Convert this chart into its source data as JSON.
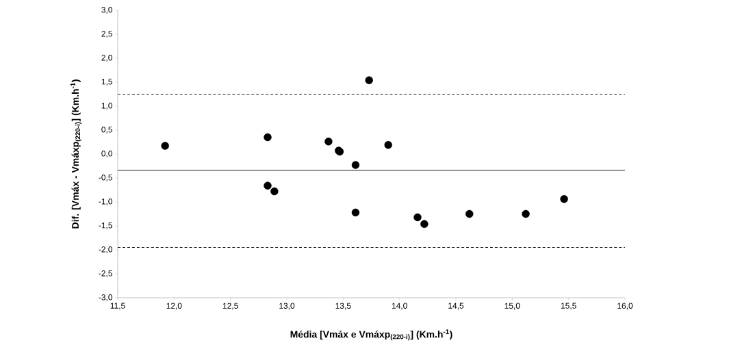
{
  "chart_data": {
    "type": "scatter",
    "xlabel": "Média [Vmáx e Vmáxp$_{(220-i)}$] (Km.h$^{-1}$)",
    "ylabel": "Dif. [Vmáx - Vmáxp$_{(220-i)}$] (Km.h$^{-1}$)",
    "x": [
      11.92,
      12.83,
      12.83,
      12.89,
      13.37,
      13.46,
      13.47,
      13.61,
      13.61,
      13.73,
      13.9,
      14.16,
      14.22,
      14.62,
      15.12,
      15.46
    ],
    "values": [
      0.17,
      0.35,
      -0.66,
      -0.78,
      0.26,
      0.07,
      0.05,
      -0.23,
      -1.22,
      1.54,
      0.19,
      -1.32,
      -1.46,
      -1.25,
      -1.25,
      -0.94
    ],
    "color": "#000000",
    "marker": "circle",
    "xlim": [
      11.5,
      16.0
    ],
    "xticks": [
      {
        "value": 11.5,
        "label": "11,5"
      },
      {
        "value": 12.0,
        "label": "12,0"
      },
      {
        "value": 12.5,
        "label": "12,5"
      },
      {
        "value": 13.0,
        "label": "13,0"
      },
      {
        "value": 13.5,
        "label": "13,5"
      },
      {
        "value": 14.0,
        "label": "14,0"
      },
      {
        "value": 14.5,
        "label": "14,5"
      },
      {
        "value": 15.0,
        "label": "15,0"
      },
      {
        "value": 15.5,
        "label": "15,5"
      },
      {
        "value": 16.0,
        "label": "16,0"
      }
    ],
    "ylim": [
      -3.0,
      3.0
    ],
    "yticks": [
      {
        "value": -3.0,
        "label": "-3,0"
      },
      {
        "value": -2.5,
        "label": "-2,5"
      },
      {
        "value": -2.0,
        "label": "-2,0"
      },
      {
        "value": -1.5,
        "label": "-1,5"
      },
      {
        "value": -1.0,
        "label": "-1,0"
      },
      {
        "value": -0.5,
        "label": "-0,5"
      },
      {
        "value": 0.0,
        "label": "0,0"
      },
      {
        "value": 0.5,
        "label": "0,5"
      },
      {
        "value": 1.0,
        "label": "1,0"
      },
      {
        "value": 1.5,
        "label": "1,5"
      },
      {
        "value": 2.0,
        "label": "2,0"
      },
      {
        "value": 2.5,
        "label": "2,5"
      },
      {
        "value": 3.0,
        "label": "3,0"
      }
    ],
    "ref_lines": [
      {
        "axis": "y",
        "value": -0.34,
        "color": "#000000",
        "line_style": "solid"
      },
      {
        "axis": "y",
        "value": 1.24,
        "color": "#000000",
        "line_style": "dashed"
      },
      {
        "axis": "y",
        "value": -1.95,
        "color": "#000000",
        "line_style": "dashed"
      }
    ]
  }
}
